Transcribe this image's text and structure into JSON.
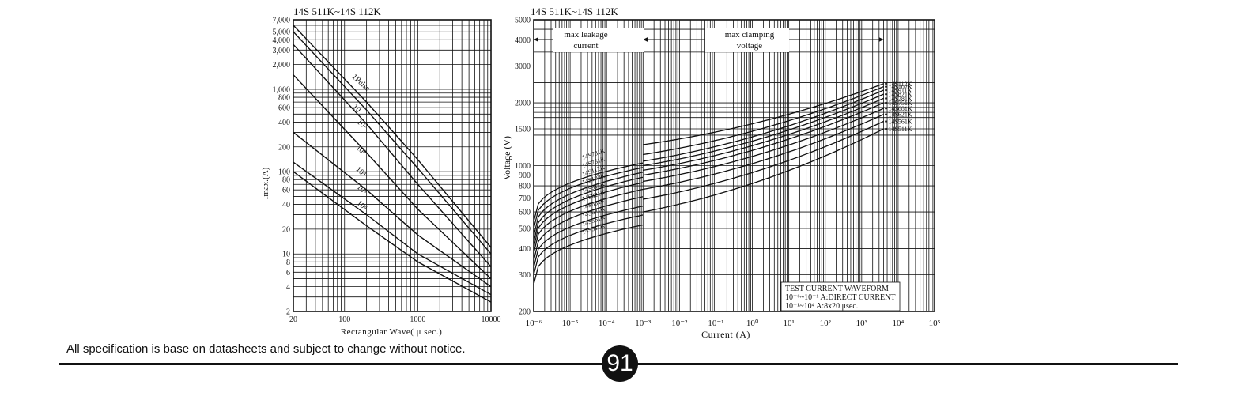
{
  "footer": {
    "notice": "All specification is base on datasheets and subject to change without notice.",
    "page_number": "91"
  },
  "chart_data": [
    {
      "type": "line",
      "title": "14S 511K~14S 112K",
      "xlabel": "Rectangular Wave( μ sec.)",
      "ylabel": "Imax.(A)",
      "xscale": "log",
      "yscale": "log",
      "xlim": [
        20,
        10000
      ],
      "ylim": [
        2,
        7000
      ],
      "xticks": [
        "20",
        "100",
        "1000",
        "10000"
      ],
      "yticks": [
        {
          "v": 7000,
          "label": "7,000"
        },
        {
          "v": 5000,
          "label": "5,000"
        },
        {
          "v": 4000,
          "label": "4,000"
        },
        {
          "v": 3000,
          "label": "3,000"
        },
        {
          "v": 2000,
          "label": "2,000"
        },
        {
          "v": 1000,
          "label": "1,000"
        },
        {
          "v": 800,
          "label": "800"
        },
        {
          "v": 600,
          "label": "600"
        },
        {
          "v": 400,
          "label": "400"
        },
        {
          "v": 200,
          "label": "200"
        },
        {
          "v": 100,
          "label": "100"
        },
        {
          "v": 80,
          "label": "80"
        },
        {
          "v": 60,
          "label": "60"
        },
        {
          "v": 40,
          "label": "40"
        },
        {
          "v": 20,
          "label": "20"
        },
        {
          "v": 10,
          "label": "10"
        },
        {
          "v": 8,
          "label": "8"
        },
        {
          "v": 6,
          "label": "6"
        },
        {
          "v": 4,
          "label": "4"
        },
        {
          "v": 2,
          "label": "2"
        }
      ],
      "grid": true,
      "series": [
        {
          "name": "1Pulse",
          "points": [
            [
              20,
              6000
            ],
            [
              200,
              700
            ],
            [
              1000,
              140
            ],
            [
              10000,
              12
            ]
          ]
        },
        {
          "name": "10",
          "points": [
            [
              20,
              5000
            ],
            [
              200,
              560
            ],
            [
              1000,
              110
            ],
            [
              10000,
              10
            ]
          ]
        },
        {
          "name": "10²",
          "points": [
            [
              20,
              3500
            ],
            [
              200,
              380
            ],
            [
              1000,
              70
            ],
            [
              10000,
              7
            ]
          ]
        },
        {
          "name": "10³",
          "points": [
            [
              20,
              1500
            ],
            [
              200,
              170
            ],
            [
              1000,
              35
            ],
            [
              10000,
              5
            ]
          ]
        },
        {
          "name": "10⁴",
          "points": [
            [
              20,
              300
            ],
            [
              200,
              60
            ],
            [
              1000,
              17
            ],
            [
              10000,
              4
            ]
          ]
        },
        {
          "name": "10⁵",
          "points": [
            [
              20,
              130
            ],
            [
              200,
              30
            ],
            [
              1000,
              10
            ],
            [
              10000,
              3.2
            ]
          ]
        },
        {
          "name": "10⁶",
          "points": [
            [
              20,
              100
            ],
            [
              200,
              22
            ],
            [
              1000,
              8
            ],
            [
              10000,
              2.6
            ]
          ]
        }
      ],
      "labels": [
        {
          "text": "1Pulse",
          "x": 160,
          "y": 1150
        },
        {
          "text": "10",
          "x": 140,
          "y": 560
        },
        {
          "text": "10²",
          "x": 165,
          "y": 360
        },
        {
          "text": "10³",
          "x": 160,
          "y": 175
        },
        {
          "text": "10⁴",
          "x": 160,
          "y": 95
        },
        {
          "text": "10⁵",
          "x": 165,
          "y": 58
        },
        {
          "text": "10⁶",
          "x": 165,
          "y": 37
        }
      ]
    },
    {
      "type": "line",
      "title": "14S 511K~14S 112K",
      "xlabel": "Current (A)",
      "ylabel": "Voltage (V)",
      "xscale": "log",
      "yscale": "log",
      "xlim": [
        -6,
        5
      ],
      "ylim": [
        200,
        5000
      ],
      "xticks": [
        "10⁻⁶",
        "10⁻⁵",
        "10⁻⁴",
        "10⁻³",
        "10⁻²",
        "10⁻¹",
        "10⁰",
        "10¹",
        "10²",
        "10³",
        "10⁴",
        "10⁵"
      ],
      "yticks": [
        {
          "v": 5000,
          "label": "5000"
        },
        {
          "v": 4000,
          "label": "4000"
        },
        {
          "v": 3000,
          "label": "3000"
        },
        {
          "v": 2000,
          "label": "2000"
        },
        {
          "v": 1500,
          "label": "1500"
        },
        {
          "v": 1000,
          "label": "1000"
        },
        {
          "v": 900,
          "label": "900"
        },
        {
          "v": 800,
          "label": "800"
        },
        {
          "v": 700,
          "label": "700"
        },
        {
          "v": 600,
          "label": "600"
        },
        {
          "v": 500,
          "label": "500"
        },
        {
          "v": 400,
          "label": "400"
        },
        {
          "v": 300,
          "label": "300"
        },
        {
          "v": 200,
          "label": "200"
        }
      ],
      "grid": true,
      "regions": [
        {
          "label_line1": "max leakage",
          "label_line2": "current",
          "from": -6,
          "to": -3
        },
        {
          "label_line1": "max clamping",
          "label_line2": "voltage",
          "from": -3,
          "to": 3.6
        }
      ],
      "leakage_series": [
        {
          "name": "14S781K",
          "lo": 540,
          "hi": 1030
        },
        {
          "name": "14S751K",
          "lo": 500,
          "hi": 980
        },
        {
          "name": "14S112K",
          "lo": 460,
          "hi": 930
        },
        {
          "name": "14S102K",
          "lo": 430,
          "hi": 880
        },
        {
          "name": "14S911K",
          "lo": 405,
          "hi": 830
        },
        {
          "name": "14S821K",
          "lo": 380,
          "hi": 770
        },
        {
          "name": "14S681K",
          "lo": 350,
          "hi": 710
        },
        {
          "name": "14S621K",
          "lo": 325,
          "hi": 640
        },
        {
          "name": "14S561K",
          "lo": 300,
          "hi": 580
        },
        {
          "name": "14S511K",
          "lo": 270,
          "hi": 520
        }
      ],
      "clamping_series": [
        {
          "name": "14S112K",
          "start": 1260,
          "end": 2470
        },
        {
          "name": "14S102K",
          "start": 1130,
          "end": 2390
        },
        {
          "name": "14S911K",
          "start": 1050,
          "end": 2300
        },
        {
          "name": "14S821K",
          "start": 1000,
          "end": 2200
        },
        {
          "name": "14S781K",
          "start": 950,
          "end": 2100
        },
        {
          "name": "14S751K",
          "start": 900,
          "end": 2000
        },
        {
          "name": "14S681K",
          "start": 840,
          "end": 1880
        },
        {
          "name": "14S621K",
          "start": 770,
          "end": 1760
        },
        {
          "name": "14S561K",
          "start": 690,
          "end": 1630
        },
        {
          "name": "14S511K",
          "start": 600,
          "end": 1500
        }
      ],
      "note": {
        "line1": "TEST CURRENT WAVEFORM",
        "line2": "10⁻⁶~10⁻¹ A:DIRECT CURRENT",
        "line3": "10⁻¹~10⁴ A:8x20 μsec."
      }
    }
  ]
}
